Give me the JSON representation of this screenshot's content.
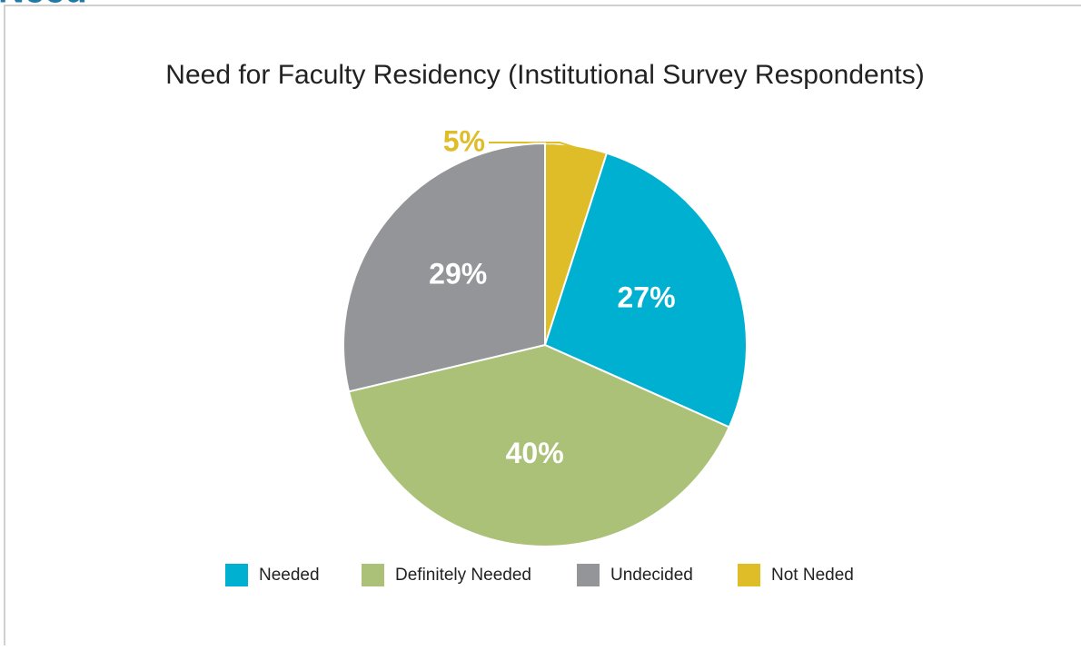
{
  "heading": "Need",
  "chart_data": {
    "type": "pie",
    "title": "Need for Faculty Residency (Institutional Survey Respondents)",
    "categories": [
      "Needed",
      "Definitely Needed",
      "Undecided",
      "Not Neded"
    ],
    "values": [
      27,
      40,
      29,
      5
    ],
    "value_labels": [
      "27%",
      "40%",
      "29%",
      "5%"
    ],
    "colors": [
      "#00b0d0",
      "#abc178",
      "#939598",
      "#dfbd28"
    ]
  }
}
